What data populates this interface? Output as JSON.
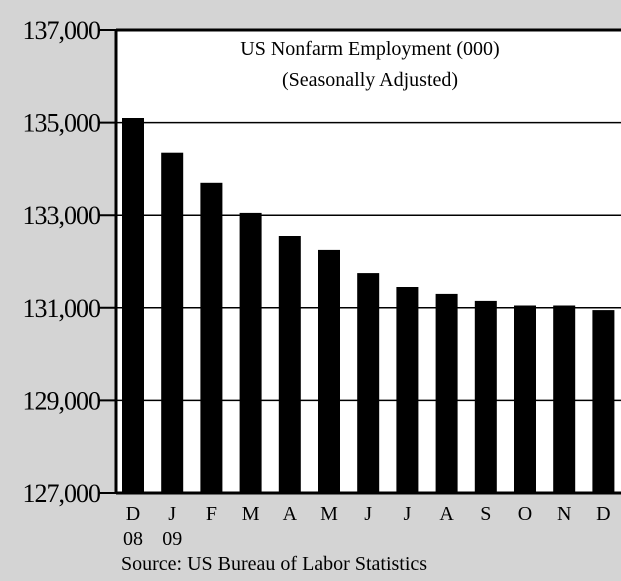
{
  "chart_data": {
    "type": "bar",
    "title": "US Nonfarm Employment (000)",
    "subtitle": "(Seasonally Adjusted)",
    "source": "Source: US Bureau of Labor Statistics",
    "categories": [
      "D",
      "J",
      "F",
      "M",
      "A",
      "M",
      "J",
      "J",
      "A",
      "S",
      "O",
      "N",
      "D"
    ],
    "category_years": [
      "08",
      "09",
      "",
      "",
      "",
      "",
      "",
      "",
      "",
      "",
      "",
      "",
      ""
    ],
    "values": [
      135100,
      134350,
      133700,
      133050,
      132550,
      132250,
      131750,
      131450,
      131300,
      131150,
      131050,
      131050,
      130950
    ],
    "ylim": [
      127000,
      137000
    ],
    "yticks": [
      127000,
      129000,
      131000,
      133000,
      135000,
      137000
    ],
    "ytick_labels": [
      "127,000",
      "129,000",
      "131,000",
      "133,000",
      "135,000",
      "137,000"
    ],
    "grid": true,
    "colors": {
      "background": "#d4d4d4",
      "plot_area": "#ffffff",
      "bars": "#000000"
    }
  }
}
